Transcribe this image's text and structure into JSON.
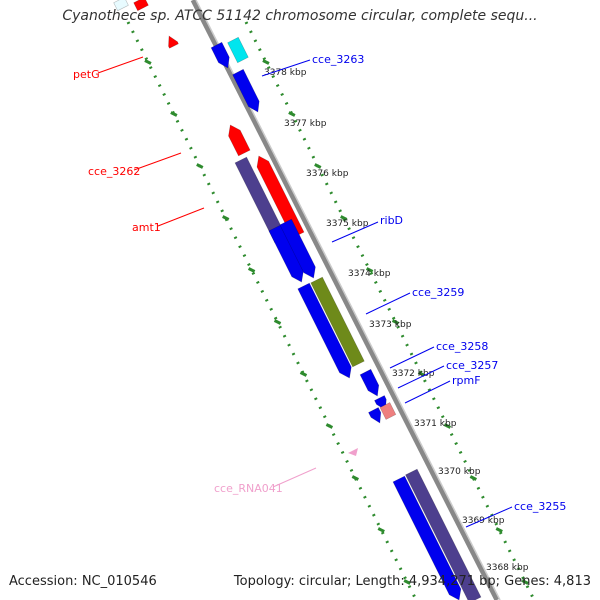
{
  "title": "Cyanothece sp. ATCC 51142 chromosome circular, complete sequ...",
  "footer": {
    "accession": "Accession: NC_010546",
    "summary": "Topology: circular; Length: 4,934,271 bp; Genes: 4,813"
  },
  "colors": {
    "blue": "#0000ee",
    "red": "#ff0000",
    "purple": "#4d3f8e",
    "olive": "#6e8a1a",
    "cyan": "#00e5ee",
    "pink": "#ee7f7f",
    "light_pink": "#f0a0cc",
    "green_dots": "#2e8b2e",
    "backbone": "#888888"
  },
  "kbp_ticks": [
    "3378 kbp",
    "3377 kbp",
    "3376 kbp",
    "3375 kbp",
    "3374 kbp",
    "3373 kbp",
    "3372 kbp",
    "3371 kbp",
    "3370 kbp",
    "3369 kbp",
    "3368 kbp"
  ],
  "gene_labels": [
    {
      "text": "cce_3263",
      "color": "blue"
    },
    {
      "text": "ribD",
      "color": "blue"
    },
    {
      "text": "cce_3259",
      "color": "blue"
    },
    {
      "text": "cce_3258",
      "color": "blue"
    },
    {
      "text": "cce_3257",
      "color": "blue"
    },
    {
      "text": "rpmF",
      "color": "blue"
    },
    {
      "text": "cce_3255",
      "color": "blue"
    },
    {
      "text": "petG",
      "color": "red"
    },
    {
      "text": "cce_3262",
      "color": "red"
    },
    {
      "text": "amt1",
      "color": "red"
    },
    {
      "text": "cce_RNA041",
      "color": "light_pink"
    }
  ]
}
